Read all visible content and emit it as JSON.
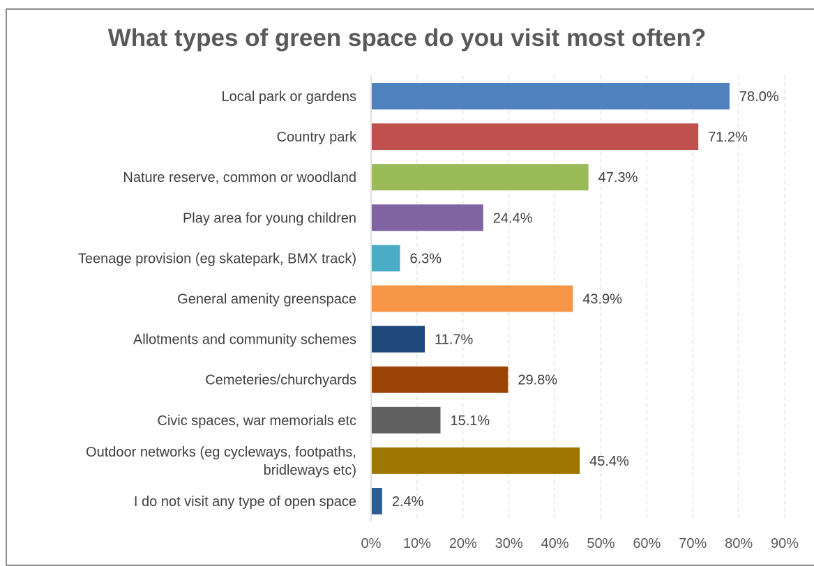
{
  "chart_data": {
    "type": "bar",
    "orientation": "horizontal",
    "title": "What types of green space do you visit most often?",
    "xlabel": "",
    "ylabel": "",
    "xlim": [
      0,
      90
    ],
    "xticks": [
      "0%",
      "10%",
      "20%",
      "30%",
      "40%",
      "50%",
      "60%",
      "70%",
      "80%",
      "90%"
    ],
    "grid": "vertical dashed",
    "legend": "none",
    "categories": [
      "Local park or gardens",
      "Country park",
      "Nature reserve, common or woodland",
      "Play area for young children",
      "Teenage provision (eg skatepark, BMX track)",
      "General amenity greenspace",
      "Allotments and community schemes",
      "Cemeteries/churchyards",
      "Civic spaces, war memorials etc",
      "Outdoor networks (eg cycleways, footpaths, bridleways etc)",
      "I do not visit any type of open space"
    ],
    "category_lines": [
      [
        "Local park or gardens"
      ],
      [
        "Country park"
      ],
      [
        "Nature reserve, common or woodland"
      ],
      [
        "Play area for young children"
      ],
      [
        "Teenage provision (eg skatepark, BMX track)"
      ],
      [
        "General amenity greenspace"
      ],
      [
        "Allotments and community schemes"
      ],
      [
        "Cemeteries/churchyards"
      ],
      [
        "Civic spaces, war memorials etc"
      ],
      [
        "Outdoor networks (eg cycleways, footpaths,",
        "bridleways etc)"
      ],
      [
        "I do not visit any type of open space"
      ]
    ],
    "values": [
      78.0,
      71.2,
      47.3,
      24.4,
      6.3,
      43.9,
      11.7,
      29.8,
      15.1,
      45.4,
      2.4
    ],
    "value_labels": [
      "78.0%",
      "71.2%",
      "47.3%",
      "24.4%",
      "6.3%",
      "43.9%",
      "11.7%",
      "29.8%",
      "15.1%",
      "45.4%",
      "2.4%"
    ],
    "colors": [
      "#4f81bd",
      "#c0504d",
      "#9bbb59",
      "#8064a2",
      "#4bacc6",
      "#f79646",
      "#1f497d",
      "#9c4308",
      "#606060",
      "#9c7600",
      "#2c5d96"
    ]
  }
}
